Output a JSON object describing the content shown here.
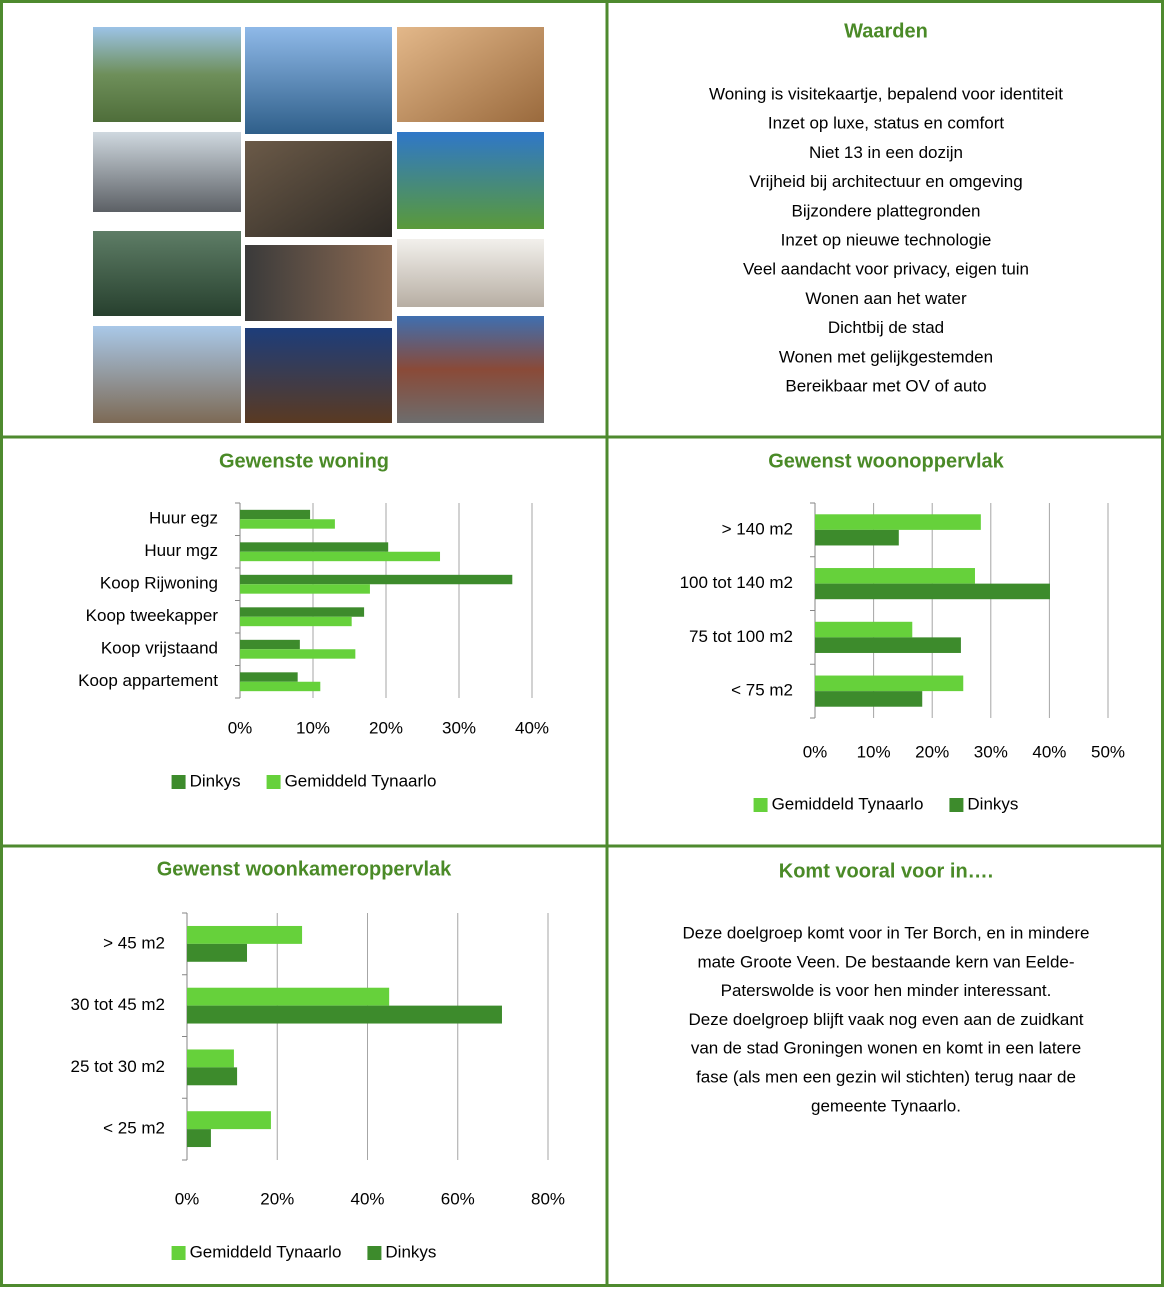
{
  "waarden": {
    "title": "Waarden",
    "items": [
      "Woning is visitekaartje, bepalend voor identiteit",
      "Inzet op luxe, status en comfort",
      "Niet 13 in een dozijn",
      "Vrijheid bij architectuur en omgeving",
      "Bijzondere plattegronden",
      "Inzet op nieuwe technologie",
      "Veel aandacht voor privacy, eigen tuin",
      "Wonen aan het water",
      "Dichtbij de stad",
      "Wonen met gelijkgestemden",
      "Bereikbaar met OV of auto"
    ]
  },
  "chart_data": [
    {
      "type": "hbar",
      "title": "Gewenste woning",
      "categories": [
        "Huur egz",
        "Huur mgz",
        "Koop Rijwoning",
        "Koop tweekapper",
        "Koop vrijstaand",
        "Koop appartement"
      ],
      "series": [
        {
          "name": "Dinkys",
          "color": "#3d8b2c",
          "values": [
            9.6,
            20.3,
            37.3,
            17.0,
            8.2,
            7.9
          ]
        },
        {
          "name": "Gemiddeld Tynaarlo",
          "color": "#66d13b",
          "values": [
            13.0,
            27.4,
            17.8,
            15.3,
            15.8,
            11.0
          ]
        }
      ],
      "xlim": [
        0,
        40
      ],
      "xticks": [
        {
          "value": 0,
          "label": "0%"
        },
        {
          "value": 10,
          "label": "10%"
        },
        {
          "value": 20,
          "label": "20%"
        },
        {
          "value": 30,
          "label": "30%"
        },
        {
          "value": 40,
          "label": "40%"
        }
      ],
      "grid": true,
      "legend": "bottom"
    },
    {
      "type": "hbar",
      "title": "Gewenst woonoppervlak",
      "categories": [
        "> 140 m2",
        "100 tot 140 m2",
        "75 tot  100 m2",
        "< 75 m2"
      ],
      "series": [
        {
          "name": "Gemiddeld Tynaarlo",
          "color": "#66d13b",
          "values": [
            28.3,
            27.3,
            16.6,
            25.3
          ]
        },
        {
          "name": "Dinkys",
          "color": "#3d8b2c",
          "values": [
            14.3,
            40.1,
            24.9,
            18.3
          ]
        }
      ],
      "xlim": [
        0,
        50
      ],
      "xticks": [
        {
          "value": 0,
          "label": "0%"
        },
        {
          "value": 10,
          "label": "10%"
        },
        {
          "value": 20,
          "label": "20%"
        },
        {
          "value": 30,
          "label": "30%"
        },
        {
          "value": 40,
          "label": "40%"
        },
        {
          "value": 50,
          "label": "50%"
        }
      ],
      "grid": true,
      "legend": "bottom"
    },
    {
      "type": "hbar",
      "title": "Gewenst woonkameroppervlak",
      "categories": [
        "> 45 m2",
        "30 tot 45 m2",
        "25 tot  30 m2",
        "< 25 m2"
      ],
      "series": [
        {
          "name": "Gemiddeld Tynaarlo",
          "color": "#66d13b",
          "values": [
            25.5,
            44.8,
            10.4,
            18.6
          ]
        },
        {
          "name": "Dinkys",
          "color": "#3d8b2c",
          "values": [
            13.3,
            69.8,
            11.1,
            5.3
          ]
        }
      ],
      "xlim": [
        0,
        80
      ],
      "xticks": [
        {
          "value": 0,
          "label": "0%"
        },
        {
          "value": 20,
          "label": "20%"
        },
        {
          "value": 40,
          "label": "40%"
        },
        {
          "value": 60,
          "label": "60%"
        },
        {
          "value": 80,
          "label": "80%"
        }
      ],
      "grid": true,
      "legend": "bottom"
    }
  ],
  "komt_vooral": {
    "title": "Komt vooral voor in….",
    "lines": [
      "Deze doelgroep komt voor in Ter Borch, en in mindere",
      "mate Groote Veen. De bestaande kern van Eelde-",
      "Paterswolde is voor hen minder interessant.",
      "Deze doelgroep blijft vaak nog even aan de zuidkant",
      "van de stad Groningen wonen en komt in een latere",
      "fase (als men een gezin wil stichten) terug naar de",
      "gemeente Tynaarlo."
    ]
  }
}
